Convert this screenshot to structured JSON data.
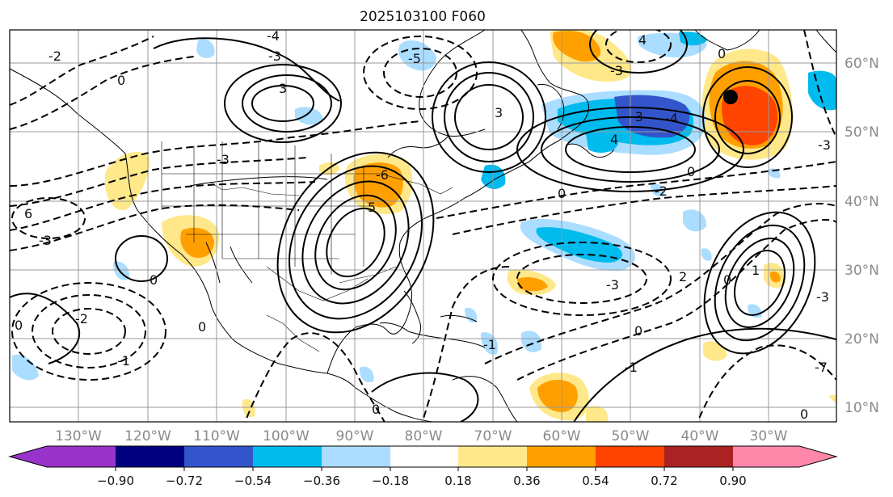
{
  "title": "2025103100 F060",
  "lon_labels": [
    "130°W",
    "120°W",
    "110°W",
    "100°W",
    "90°W",
    "80°W",
    "70°W",
    "60°W",
    "50°W",
    "40°W",
    "30°W"
  ],
  "lat_labels": [
    "60°N",
    "50°N",
    "40°N",
    "30°N",
    "20°N",
    "10°N"
  ],
  "colorbar": {
    "labels": [
      "−0.90",
      "−0.72",
      "−0.54",
      "−0.36",
      "−0.18",
      "0.18",
      "0.36",
      "0.54",
      "0.72",
      "0.90"
    ],
    "colors": [
      "#9933cc",
      "#000080",
      "#3355cc",
      "#00bbee",
      "#aaddff",
      "#ffffff",
      "#ffe88a",
      "#ffa000",
      "#ff4400",
      "#aa2222",
      "#ff88aa"
    ]
  },
  "contour_labels": [
    "-2",
    "0",
    "-3",
    "-4",
    "3",
    "-5",
    "4",
    "5",
    "-6",
    "6",
    "-1",
    "2",
    "1",
    "-7"
  ],
  "marker": "storm-center"
}
